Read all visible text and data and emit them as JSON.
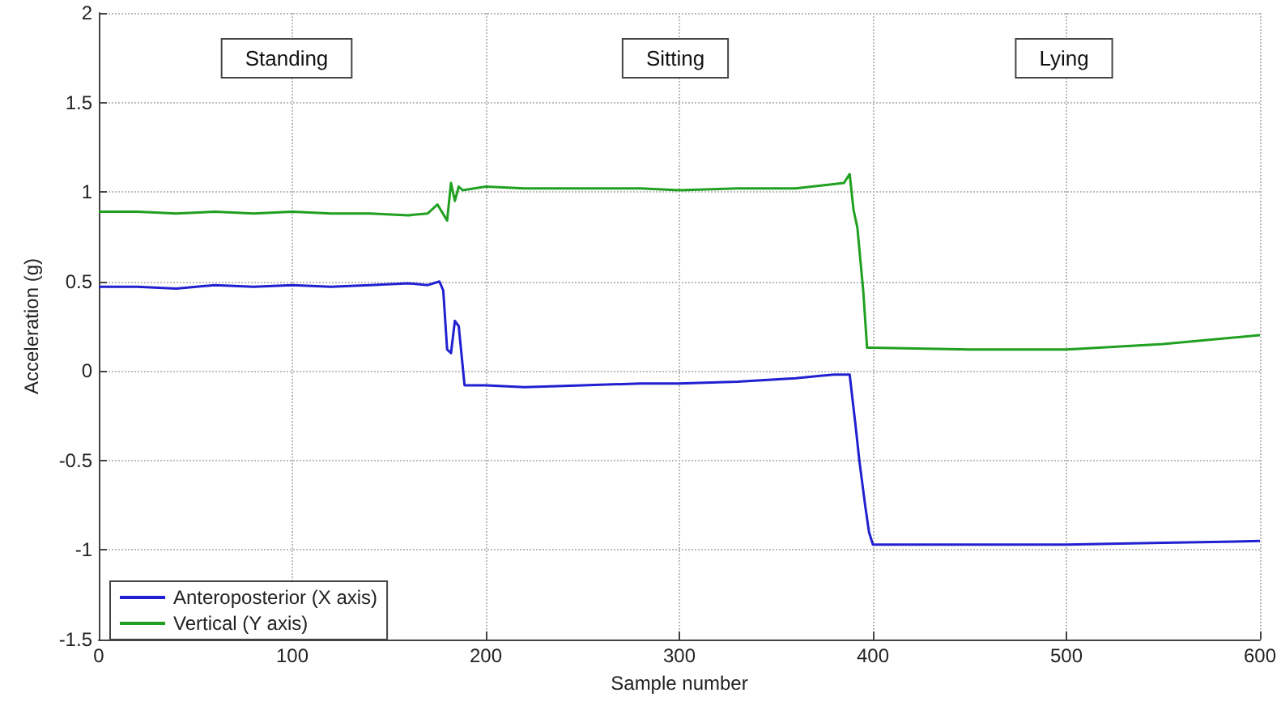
{
  "chart_data": {
    "type": "line",
    "xlabel": "Sample number",
    "ylabel": "Acceleration (g)",
    "xlim": [
      0,
      600
    ],
    "xticks": [
      0,
      100,
      200,
      300,
      400,
      500,
      600
    ],
    "ylim": [
      -1.5,
      2
    ],
    "yticks": [
      -1.5,
      -1,
      -0.5,
      0,
      0.5,
      1,
      1.5,
      2
    ],
    "grid": true,
    "legend": "bottom left",
    "marker": "none",
    "line_style": "solid",
    "annotations": [
      "Standing",
      "Sitting",
      "Lying"
    ],
    "series": [
      {
        "name": "Anteroposterior (X axis)",
        "color": "#2020d0",
        "x": [
          0,
          20,
          40,
          60,
          80,
          100,
          120,
          140,
          160,
          170,
          176,
          178,
          180,
          182,
          184,
          186,
          189,
          200,
          220,
          250,
          280,
          300,
          330,
          360,
          380,
          388,
          391,
          393,
          396,
          398,
          400,
          450,
          500,
          550,
          600
        ],
        "values": [
          0.47,
          0.47,
          0.46,
          0.48,
          0.47,
          0.48,
          0.47,
          0.48,
          0.49,
          0.48,
          0.5,
          0.45,
          0.12,
          0.1,
          0.28,
          0.25,
          -0.08,
          -0.08,
          -0.09,
          -0.08,
          -0.07,
          -0.07,
          -0.06,
          -0.04,
          -0.02,
          -0.02,
          -0.3,
          -0.5,
          -0.75,
          -0.9,
          -0.97,
          -0.97,
          -0.97,
          -0.96,
          -0.95
        ]
      },
      {
        "name": "Vertical (Y axis)",
        "color": "#20a020",
        "x": [
          0,
          20,
          40,
          60,
          80,
          100,
          120,
          140,
          160,
          170,
          175,
          180,
          182,
          184,
          186,
          188,
          200,
          220,
          250,
          280,
          300,
          330,
          360,
          385,
          388,
          390,
          392,
          395,
          397,
          400,
          450,
          500,
          550,
          600
        ],
        "values": [
          0.89,
          0.89,
          0.88,
          0.89,
          0.88,
          0.89,
          0.88,
          0.88,
          0.87,
          0.88,
          0.93,
          0.84,
          1.05,
          0.95,
          1.03,
          1.01,
          1.03,
          1.02,
          1.02,
          1.02,
          1.01,
          1.02,
          1.02,
          1.05,
          1.1,
          0.9,
          0.8,
          0.45,
          0.13,
          0.13,
          0.12,
          0.12,
          0.15,
          0.2
        ]
      }
    ]
  }
}
